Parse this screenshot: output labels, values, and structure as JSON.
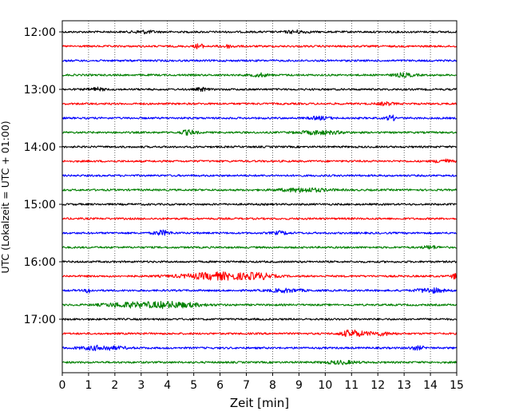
{
  "chart_data": {
    "type": "line",
    "title": "",
    "xlabel": "Zeit  [min]",
    "ylabel": "UTC (Lokalzeit = UTC + 01:00)",
    "xlim": [
      0,
      15
    ],
    "x_ticks": [
      0,
      1,
      2,
      3,
      4,
      5,
      6,
      7,
      8,
      9,
      10,
      11,
      12,
      13,
      14,
      15
    ],
    "x_tick_labels": [
      "0",
      "1",
      "2",
      "3",
      "4",
      "5",
      "6",
      "7",
      "8",
      "9",
      "10",
      "11",
      "12",
      "13",
      "14",
      "15"
    ],
    "y_ticks": [
      "12:00",
      "13:00",
      "14:00",
      "15:00",
      "16:00",
      "17:00"
    ],
    "grid": "vertical dotted lines at each minute",
    "trace_interval_minutes": 15,
    "trace_color_cycle": [
      "#000000",
      "#ff0000",
      "#0000ff",
      "#008000"
    ],
    "traces": [
      {
        "start": "12:00",
        "color": "#000000",
        "bursts": [
          [
            3.1,
            0.4,
            1.0
          ],
          [
            8.9,
            0.4,
            1.0
          ]
        ]
      },
      {
        "start": "12:15",
        "color": "#ff0000",
        "bursts": [
          [
            5.2,
            0.15,
            2.0
          ],
          [
            6.3,
            0.3,
            1.0
          ]
        ]
      },
      {
        "start": "12:30",
        "color": "#0000ff",
        "bursts": []
      },
      {
        "start": "12:45",
        "color": "#008000",
        "bursts": [
          [
            7.5,
            0.3,
            1.2
          ],
          [
            13.0,
            0.4,
            1.3
          ]
        ]
      },
      {
        "start": "13:00",
        "color": "#000000",
        "bursts": [
          [
            1.3,
            0.3,
            1.1
          ],
          [
            5.3,
            0.2,
            1.2
          ]
        ]
      },
      {
        "start": "13:15",
        "color": "#ff0000",
        "bursts": [
          [
            12.3,
            0.3,
            1.0
          ]
        ]
      },
      {
        "start": "13:30",
        "color": "#0000ff",
        "bursts": [
          [
            9.8,
            0.4,
            1.0
          ],
          [
            12.5,
            0.15,
            2.2
          ]
        ]
      },
      {
        "start": "13:45",
        "color": "#008000",
        "bursts": [
          [
            4.8,
            0.3,
            1.6
          ],
          [
            9.8,
            0.8,
            1.3
          ]
        ]
      },
      {
        "start": "14:00",
        "color": "#000000",
        "bursts": []
      },
      {
        "start": "14:15",
        "color": "#ff0000",
        "bursts": [
          [
            14.5,
            0.3,
            1.4
          ]
        ]
      },
      {
        "start": "14:30",
        "color": "#0000ff",
        "bursts": []
      },
      {
        "start": "14:45",
        "color": "#008000",
        "bursts": [
          [
            9.2,
            0.9,
            1.4
          ]
        ]
      },
      {
        "start": "15:00",
        "color": "#000000",
        "bursts": []
      },
      {
        "start": "15:15",
        "color": "#ff0000",
        "bursts": []
      },
      {
        "start": "15:30",
        "color": "#0000ff",
        "bursts": [
          [
            3.8,
            0.3,
            1.8
          ],
          [
            8.3,
            0.3,
            1.1
          ]
        ]
      },
      {
        "start": "15:45",
        "color": "#008000",
        "bursts": [
          [
            14.0,
            0.3,
            1.1
          ]
        ]
      },
      {
        "start": "16:00",
        "color": "#000000",
        "bursts": []
      },
      {
        "start": "16:15",
        "color": "#ff0000",
        "bursts": [
          [
            6.0,
            1.4,
            2.6
          ],
          [
            7.5,
            0.5,
            1.6
          ],
          [
            14.9,
            0.1,
            2.0
          ]
        ]
      },
      {
        "start": "16:30",
        "color": "#0000ff",
        "bursts": [
          [
            1.0,
            0.1,
            2.0
          ],
          [
            8.5,
            0.6,
            1.2
          ],
          [
            14.0,
            0.5,
            1.7
          ]
        ]
      },
      {
        "start": "16:45",
        "color": "#008000",
        "bursts": [
          [
            2.3,
            0.8,
            1.4
          ],
          [
            4.0,
            1.2,
            2.2
          ]
        ]
      },
      {
        "start": "17:00",
        "color": "#000000",
        "bursts": []
      },
      {
        "start": "17:15",
        "color": "#ff0000",
        "bursts": [
          [
            11.0,
            0.4,
            2.5
          ],
          [
            12.0,
            0.6,
            1.2
          ]
        ]
      },
      {
        "start": "17:30",
        "color": "#0000ff",
        "bursts": [
          [
            1.5,
            0.8,
            1.6
          ],
          [
            13.5,
            0.3,
            1.2
          ]
        ]
      },
      {
        "start": "17:45",
        "color": "#008000",
        "bursts": [
          [
            10.6,
            0.6,
            1.1
          ]
        ]
      }
    ]
  }
}
